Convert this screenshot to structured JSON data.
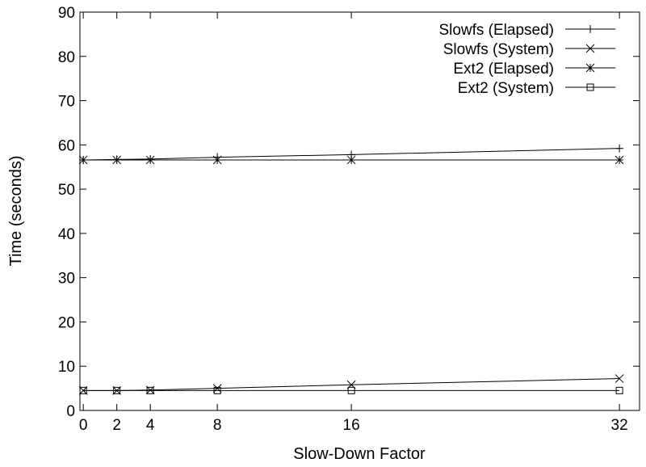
{
  "chart_data": {
    "type": "line",
    "title": "",
    "xlabel": "Slow-Down Factor",
    "ylabel": "Time (seconds)",
    "xlim": [
      -0.2,
      33.2
    ],
    "ylim": [
      0,
      90
    ],
    "x_ticks": [
      0,
      2,
      4,
      8,
      16,
      32
    ],
    "y_ticks": [
      0,
      10,
      20,
      30,
      40,
      50,
      60,
      70,
      80,
      90
    ],
    "grid": false,
    "legend_position": "top-right",
    "series": [
      {
        "name": "Slowfs (Elapsed)",
        "marker": "plus",
        "x": [
          0,
          2,
          4,
          8,
          16,
          32
        ],
        "y": [
          56.6,
          56.7,
          56.8,
          57.2,
          57.8,
          59.2
        ]
      },
      {
        "name": "Slowfs (System)",
        "marker": "cross",
        "x": [
          0,
          2,
          4,
          8,
          16,
          32
        ],
        "y": [
          4.5,
          4.5,
          4.6,
          5.0,
          5.8,
          7.2
        ]
      },
      {
        "name": "Ext2 (Elapsed)",
        "marker": "star",
        "x": [
          0,
          2,
          4,
          8,
          16,
          32
        ],
        "y": [
          56.6,
          56.6,
          56.6,
          56.6,
          56.6,
          56.6
        ]
      },
      {
        "name": "Ext2 (System)",
        "marker": "square",
        "x": [
          0,
          2,
          4,
          8,
          16,
          32
        ],
        "y": [
          4.5,
          4.5,
          4.5,
          4.5,
          4.5,
          4.5
        ]
      }
    ]
  }
}
